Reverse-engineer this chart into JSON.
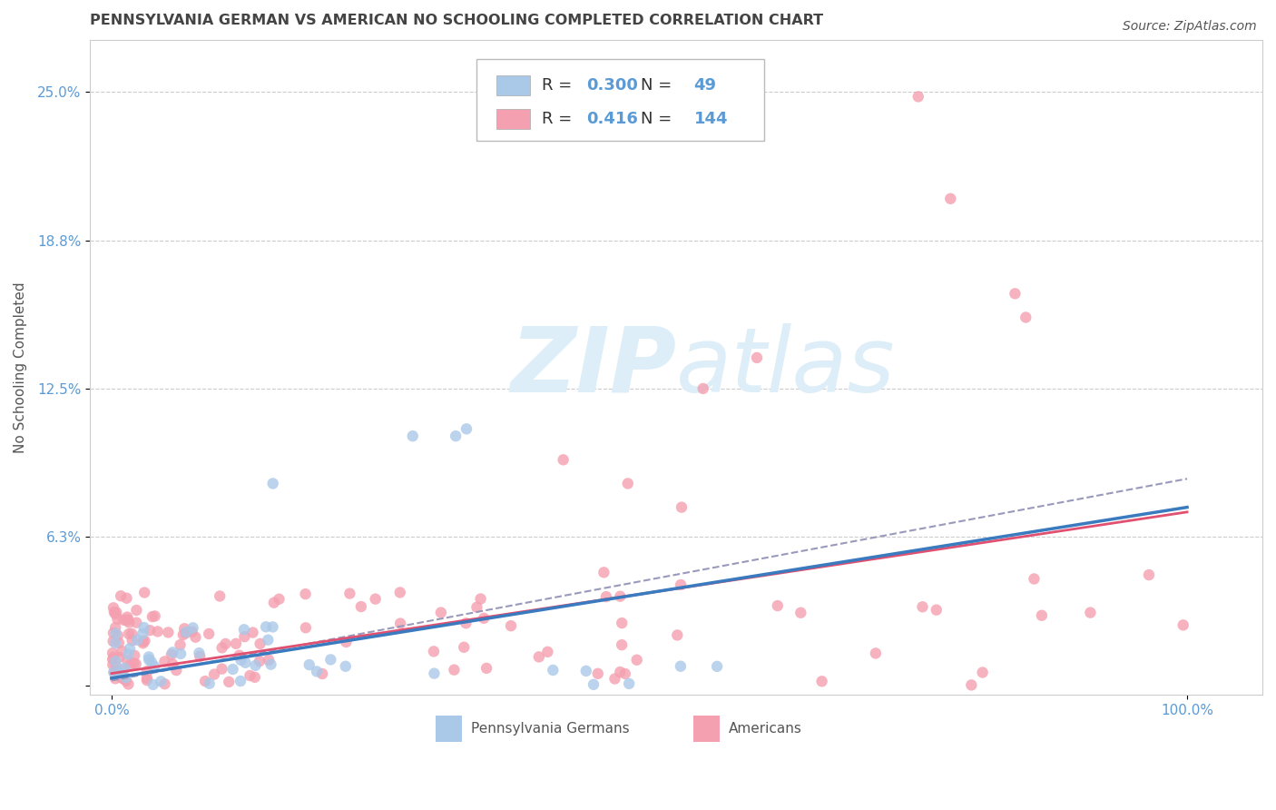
{
  "title": "PENNSYLVANIA GERMAN VS AMERICAN NO SCHOOLING COMPLETED CORRELATION CHART",
  "source": "Source: ZipAtlas.com",
  "ylabel": "No Schooling Completed",
  "xlim": [
    -2,
    107
  ],
  "ylim": [
    -0.004,
    0.272
  ],
  "blue_R": 0.3,
  "blue_N": 49,
  "pink_R": 0.416,
  "pink_N": 144,
  "blue_color": "#aac8e8",
  "pink_color": "#f4a0b0",
  "blue_line_color": "#3a7abf",
  "pink_line_color": "#e05070",
  "dash_line_color": "#9999bb",
  "grid_color": "#cccccc",
  "background_color": "#ffffff",
  "title_color": "#444444",
  "axis_tick_color": "#5b9bd5",
  "y_tick_positions": [
    0.0,
    0.0625,
    0.125,
    0.1875,
    0.25
  ],
  "y_tick_labels": [
    "",
    "6.3%",
    "12.5%",
    "18.8%",
    "25.0%"
  ],
  "x_tick_positions": [
    0,
    100
  ],
  "x_tick_labels": [
    "0.0%",
    "100.0%"
  ],
  "watermark_color": "#ddeef8",
  "title_fontsize": 11.5,
  "tick_fontsize": 11,
  "legend_fontsize": 13,
  "source_fontsize": 10,
  "legend_dark_color": "#333333",
  "legend_blue_color": "#5b9bd5",
  "bottom_legend_color": "#555555"
}
